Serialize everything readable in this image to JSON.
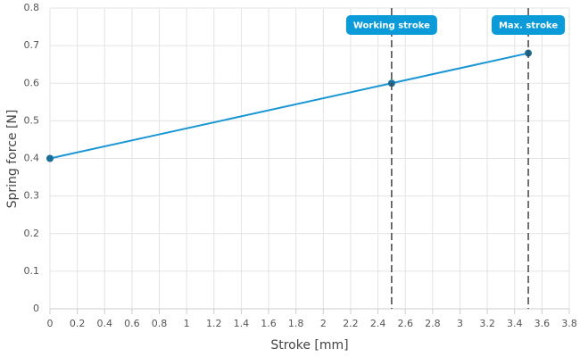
{
  "chart_data": {
    "type": "line",
    "x": [
      0,
      2.5,
      3.5
    ],
    "values": [
      0.4,
      0.6,
      0.68
    ],
    "color": "#1a96d4",
    "marker_color": "#1a6d99",
    "xlabel": "Stroke [mm]",
    "ylabel": "Spring force [N]",
    "xlim": [
      0,
      3.8
    ],
    "xticks": [
      0,
      0.2,
      0.4,
      0.6,
      0.8,
      1.0,
      1.2,
      1.4,
      1.6,
      1.8,
      2.0,
      2.2,
      2.4,
      2.6,
      2.8,
      3.0,
      3.2,
      3.4,
      3.6,
      3.8
    ],
    "ylim": [
      0,
      0.8
    ],
    "yticks": [
      0,
      0.1,
      0.2,
      0.3,
      0.4,
      0.5,
      0.6,
      0.7,
      0.8
    ],
    "grid": true,
    "annotations": [
      {
        "x": 2.5,
        "label": "Working stroke"
      },
      {
        "x": 3.5,
        "label": "Max. stroke"
      }
    ],
    "annotation_color": "#0a9bd8"
  }
}
